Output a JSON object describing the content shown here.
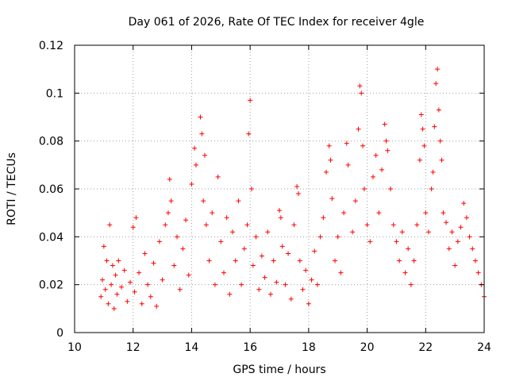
{
  "chart_data": {
    "type": "scatter",
    "title": "Day 061 of 2026, Rate Of TEC Index for receiver 4gle",
    "xlabel": "GPS time / hours",
    "ylabel": "ROTI / TECUs",
    "xlim": [
      10,
      24
    ],
    "ylim": [
      0,
      0.12
    ],
    "x_ticks": [
      10,
      12,
      14,
      16,
      18,
      20,
      22,
      24
    ],
    "x_tick_labels": [
      "10",
      "12",
      "14",
      "16",
      "18",
      "20",
      "22",
      "24"
    ],
    "y_ticks": [
      0,
      0.02,
      0.04,
      0.06,
      0.08,
      0.1,
      0.12
    ],
    "y_tick_labels": [
      "0",
      "0.02",
      "0.04",
      "0.06",
      "0.08",
      "0.1",
      "0.12"
    ],
    "grid": true,
    "marker": "+",
    "color": "#ff0000",
    "series": [
      {
        "name": "ROTI",
        "points": [
          [
            10.9,
            0.015
          ],
          [
            10.95,
            0.022
          ],
          [
            11.0,
            0.036
          ],
          [
            11.05,
            0.018
          ],
          [
            11.1,
            0.03
          ],
          [
            11.15,
            0.012
          ],
          [
            11.2,
            0.045
          ],
          [
            11.25,
            0.02
          ],
          [
            11.3,
            0.028
          ],
          [
            11.35,
            0.01
          ],
          [
            11.4,
            0.024
          ],
          [
            11.45,
            0.016
          ],
          [
            11.5,
            0.03
          ],
          [
            11.6,
            0.019
          ],
          [
            11.7,
            0.026
          ],
          [
            11.8,
            0.013
          ],
          [
            11.9,
            0.021
          ],
          [
            12.0,
            0.044
          ],
          [
            12.05,
            0.017
          ],
          [
            12.1,
            0.048
          ],
          [
            12.2,
            0.025
          ],
          [
            12.3,
            0.012
          ],
          [
            12.4,
            0.033
          ],
          [
            12.5,
            0.02
          ],
          [
            12.6,
            0.015
          ],
          [
            12.7,
            0.029
          ],
          [
            12.8,
            0.011
          ],
          [
            12.9,
            0.038
          ],
          [
            13.0,
            0.022
          ],
          [
            13.1,
            0.045
          ],
          [
            13.2,
            0.05
          ],
          [
            13.25,
            0.064
          ],
          [
            13.3,
            0.055
          ],
          [
            13.4,
            0.028
          ],
          [
            13.5,
            0.04
          ],
          [
            13.6,
            0.018
          ],
          [
            13.7,
            0.035
          ],
          [
            13.8,
            0.047
          ],
          [
            13.9,
            0.024
          ],
          [
            14.0,
            0.062
          ],
          [
            14.1,
            0.077
          ],
          [
            14.15,
            0.07
          ],
          [
            14.3,
            0.09
          ],
          [
            14.35,
            0.083
          ],
          [
            14.4,
            0.055
          ],
          [
            14.45,
            0.074
          ],
          [
            14.5,
            0.045
          ],
          [
            14.6,
            0.03
          ],
          [
            14.7,
            0.05
          ],
          [
            14.8,
            0.02
          ],
          [
            14.9,
            0.065
          ],
          [
            15.0,
            0.038
          ],
          [
            15.1,
            0.025
          ],
          [
            15.2,
            0.048
          ],
          [
            15.3,
            0.016
          ],
          [
            15.4,
            0.042
          ],
          [
            15.5,
            0.03
          ],
          [
            15.6,
            0.055
          ],
          [
            15.7,
            0.02
          ],
          [
            15.8,
            0.035
          ],
          [
            15.9,
            0.045
          ],
          [
            15.95,
            0.083
          ],
          [
            16.0,
            0.097
          ],
          [
            16.05,
            0.06
          ],
          [
            16.1,
            0.028
          ],
          [
            16.2,
            0.04
          ],
          [
            16.3,
            0.018
          ],
          [
            16.4,
            0.032
          ],
          [
            16.5,
            0.023
          ],
          [
            16.6,
            0.042
          ],
          [
            16.7,
            0.016
          ],
          [
            16.8,
            0.03
          ],
          [
            16.9,
            0.021
          ],
          [
            17.0,
            0.051
          ],
          [
            17.05,
            0.048
          ],
          [
            17.1,
            0.036
          ],
          [
            17.2,
            0.02
          ],
          [
            17.3,
            0.033
          ],
          [
            17.4,
            0.014
          ],
          [
            17.5,
            0.045
          ],
          [
            17.6,
            0.061
          ],
          [
            17.65,
            0.058
          ],
          [
            17.7,
            0.03
          ],
          [
            17.8,
            0.018
          ],
          [
            17.9,
            0.026
          ],
          [
            18.0,
            0.012
          ],
          [
            18.1,
            0.022
          ],
          [
            18.2,
            0.034
          ],
          [
            18.3,
            0.02
          ],
          [
            18.4,
            0.04
          ],
          [
            18.5,
            0.048
          ],
          [
            18.6,
            0.067
          ],
          [
            18.7,
            0.078
          ],
          [
            18.75,
            0.072
          ],
          [
            18.8,
            0.056
          ],
          [
            18.9,
            0.03
          ],
          [
            19.0,
            0.04
          ],
          [
            19.1,
            0.025
          ],
          [
            19.2,
            0.05
          ],
          [
            19.3,
            0.079
          ],
          [
            19.35,
            0.07
          ],
          [
            19.5,
            0.042
          ],
          [
            19.6,
            0.055
          ],
          [
            19.7,
            0.085
          ],
          [
            19.75,
            0.103
          ],
          [
            19.8,
            0.1
          ],
          [
            19.85,
            0.078
          ],
          [
            19.9,
            0.06
          ],
          [
            20.0,
            0.045
          ],
          [
            20.1,
            0.038
          ],
          [
            20.2,
            0.065
          ],
          [
            20.3,
            0.074
          ],
          [
            20.4,
            0.05
          ],
          [
            20.5,
            0.068
          ],
          [
            20.6,
            0.087
          ],
          [
            20.65,
            0.08
          ],
          [
            20.7,
            0.076
          ],
          [
            20.8,
            0.06
          ],
          [
            20.9,
            0.045
          ],
          [
            21.0,
            0.038
          ],
          [
            21.1,
            0.03
          ],
          [
            21.2,
            0.042
          ],
          [
            21.3,
            0.025
          ],
          [
            21.4,
            0.035
          ],
          [
            21.5,
            0.02
          ],
          [
            21.6,
            0.03
          ],
          [
            21.7,
            0.045
          ],
          [
            21.8,
            0.072
          ],
          [
            21.85,
            0.091
          ],
          [
            21.9,
            0.085
          ],
          [
            21.95,
            0.078
          ],
          [
            22.0,
            0.05
          ],
          [
            22.1,
            0.042
          ],
          [
            22.2,
            0.06
          ],
          [
            22.25,
            0.067
          ],
          [
            22.3,
            0.086
          ],
          [
            22.35,
            0.104
          ],
          [
            22.4,
            0.11
          ],
          [
            22.45,
            0.093
          ],
          [
            22.5,
            0.08
          ],
          [
            22.55,
            0.072
          ],
          [
            22.6,
            0.05
          ],
          [
            22.7,
            0.046
          ],
          [
            22.8,
            0.035
          ],
          [
            22.9,
            0.042
          ],
          [
            23.0,
            0.028
          ],
          [
            23.1,
            0.038
          ],
          [
            23.2,
            0.044
          ],
          [
            23.3,
            0.054
          ],
          [
            23.4,
            0.048
          ],
          [
            23.5,
            0.04
          ],
          [
            23.6,
            0.035
          ],
          [
            23.7,
            0.03
          ],
          [
            23.8,
            0.025
          ],
          [
            23.9,
            0.02
          ],
          [
            24.0,
            0.015
          ]
        ]
      }
    ]
  }
}
